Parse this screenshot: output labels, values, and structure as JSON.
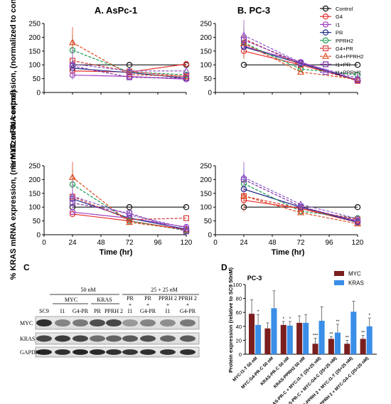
{
  "chart_data": [
    {
      "type": "line",
      "panel": "upper-left",
      "title": "A. AsPc-1",
      "ylabel": "% MYC mRNA expression, (normalized to control)",
      "x": [
        24,
        72,
        120
      ],
      "xlim": [
        0,
        120
      ],
      "ylim": [
        0,
        250
      ],
      "series": [
        {
          "name": "Control",
          "values": [
            100,
            100,
            100
          ]
        },
        {
          "name": "G4",
          "values": [
            78,
            74,
            103
          ]
        },
        {
          "name": "I1",
          "values": [
            63,
            58,
            48
          ]
        },
        {
          "name": "PR",
          "values": [
            88,
            72,
            52
          ]
        },
        {
          "name": "PPRH2",
          "values": [
            153,
            74,
            64
          ]
        },
        {
          "name": "G4+PR",
          "values": [
            115,
            76,
            58
          ]
        },
        {
          "name": "G4+PPRH2",
          "values": [
            181,
            65,
            58
          ]
        },
        {
          "name": "I1+PR",
          "values": [
            96,
            55,
            52
          ]
        },
        {
          "name": "I1+PPRH2",
          "values": [
            103,
            78,
            78
          ]
        }
      ]
    },
    {
      "type": "line",
      "panel": "upper-right",
      "title": "B. PC-3",
      "x": [
        24,
        72,
        120
      ],
      "xlim": [
        0,
        120
      ],
      "ylim": [
        0,
        250
      ],
      "series": [
        {
          "name": "Control",
          "values": [
            100,
            100,
            100
          ]
        },
        {
          "name": "G4",
          "values": [
            150,
            100,
            46
          ]
        },
        {
          "name": "I1",
          "values": [
            168,
            110,
            45
          ]
        },
        {
          "name": "PR",
          "values": [
            165,
            105,
            44
          ]
        },
        {
          "name": "PPRH2",
          "values": [
            180,
            85,
            64
          ]
        },
        {
          "name": "G4+PR",
          "values": [
            195,
            100,
            42
          ]
        },
        {
          "name": "G4+PPRH2",
          "values": [
            178,
            74,
            48
          ]
        },
        {
          "name": "I1+PR",
          "values": [
            190,
            107,
            45
          ]
        },
        {
          "name": "I1+PPRH2",
          "values": [
            207,
            108,
            52
          ]
        }
      ]
    },
    {
      "type": "line",
      "panel": "lower-left",
      "ylabel": "% KRAS mRNA expression, (normalized to control)",
      "xlabel": "Time (hr)",
      "x": [
        24,
        72,
        120
      ],
      "xlim": [
        0,
        120
      ],
      "ylim": [
        0,
        250
      ],
      "series": [
        {
          "name": "Control",
          "values": [
            100,
            100,
            100
          ]
        },
        {
          "name": "G4",
          "values": [
            75,
            50,
            18
          ]
        },
        {
          "name": "I1",
          "values": [
            82,
            60,
            28
          ]
        },
        {
          "name": "PR",
          "values": [
            130,
            60,
            20
          ]
        },
        {
          "name": "PPRH2",
          "values": [
            182,
            50,
            15
          ]
        },
        {
          "name": "G4+PR",
          "values": [
            138,
            55,
            60
          ]
        },
        {
          "name": "G4+PPRH2",
          "values": [
            208,
            45,
            18
          ]
        },
        {
          "name": "I1+PR",
          "values": [
            115,
            78,
            12
          ]
        },
        {
          "name": "I1+PPRH2",
          "values": [
            140,
            72,
            25
          ]
        }
      ]
    },
    {
      "type": "line",
      "panel": "lower-right",
      "xlabel": "Time (hr)",
      "x": [
        24,
        72,
        120
      ],
      "xlim": [
        0,
        120
      ],
      "ylim": [
        0,
        250
      ],
      "series": [
        {
          "name": "Control",
          "values": [
            100,
            100,
            100
          ]
        },
        {
          "name": "G4",
          "values": [
            125,
            95,
            45
          ]
        },
        {
          "name": "I1",
          "values": [
            165,
            100,
            50
          ]
        },
        {
          "name": "PR",
          "values": [
            165,
            100,
            45
          ]
        },
        {
          "name": "PPRH2",
          "values": [
            185,
            85,
            60
          ]
        },
        {
          "name": "G4+PR",
          "values": [
            140,
            95,
            55
          ]
        },
        {
          "name": "G4+PPRH2",
          "values": [
            140,
            80,
            40
          ]
        },
        {
          "name": "I1+PR",
          "values": [
            200,
            102,
            48
          ]
        },
        {
          "name": "I1+PPRH2",
          "values": [
            208,
            110,
            58
          ]
        }
      ]
    },
    {
      "type": "bar",
      "panel": "D",
      "title": "PC-3",
      "ylabel": "Protein expression (relative to SC9 50nM)",
      "ylim": [
        0,
        100
      ],
      "categories": [
        "MYC-I1-T 50 nM",
        "MYC-G4-PR-C 50 nM",
        "KRAS-PR-C 50 nM",
        "KRAS-PPRH2 50 nM",
        "KRAS-PR-C + MYC-I1-T (25+25 nM)",
        "KRAS-PR-C + MYC-G4-C (25+25 nM)",
        "KRAS-PPRH 2 + MYC-I1-T (25+25 nM)",
        "KRAS-PPRH 2 + MYC-G4-C (25+25 nM)"
      ],
      "series": [
        {
          "name": "MYC",
          "values": [
            58,
            37,
            42,
            45,
            15,
            22,
            15,
            22
          ]
        },
        {
          "name": "KRAS",
          "values": [
            42,
            66,
            41,
            45,
            48,
            31,
            61,
            40
          ]
        }
      ],
      "errors": {
        "MYC": [
          20,
          8,
          5,
          10,
          8,
          3,
          5,
          5
        ],
        "KRAS": [
          15,
          25,
          6,
          12,
          20,
          12,
          15,
          12
        ]
      },
      "significance": {
        "MYC": [
          "",
          "",
          "*",
          "",
          "***",
          "**",
          "**",
          "**"
        ],
        "KRAS": [
          "*",
          "",
          "*",
          "",
          "",
          "**",
          "",
          "*"
        ]
      },
      "legend_position": "top-right"
    }
  ],
  "axis": {
    "xticks": [
      "0",
      "24",
      "48",
      "72",
      "96",
      "120"
    ],
    "yticks": [
      "0",
      "50",
      "100",
      "150",
      "200",
      "250"
    ],
    "bar_yticks": [
      "0",
      "20",
      "40",
      "60",
      "80",
      "100"
    ]
  },
  "legend": {
    "position": "top-right",
    "items": [
      "Control",
      "G4",
      "I1",
      "PR",
      "PPRH2",
      "G4+PR",
      "G4+PPRH2",
      "I1+PR",
      "I1+PPRH2"
    ]
  },
  "colors": {
    "Control": "#111111",
    "G4": "#e8312f",
    "I1": "#a23fbf",
    "PR": "#1f2f8a",
    "PPRH2": "#1a9a52",
    "G4+PR": "#d93b3b",
    "G4+PPRH2": "#e04a22",
    "I1+PR": "#7b2fa8",
    "I1+PPRH2": "#8e58c8",
    "MYC": "#7a1e1e",
    "KRAS": "#3a8ee8"
  },
  "blot": {
    "panel_label": "C",
    "conc_single": "50 nM",
    "conc_combo": "25 + 25 nM",
    "group_myc": "MYC",
    "group_kras": "KRAS",
    "lanes": [
      "SC9",
      "I1",
      "G4-PR",
      "PR",
      "PPRH 2"
    ],
    "combo_top": [
      "PR",
      "PR",
      "PPRH 2",
      "PPRH 2"
    ],
    "combo_plus": [
      "+",
      "+",
      "+",
      "+"
    ],
    "combo_bottom": [
      "I1",
      "G4-PR",
      "I1",
      "G4-PR"
    ],
    "rows": [
      "MYC",
      "KRAS",
      "GAPDH"
    ]
  },
  "panel_d_label": "D"
}
